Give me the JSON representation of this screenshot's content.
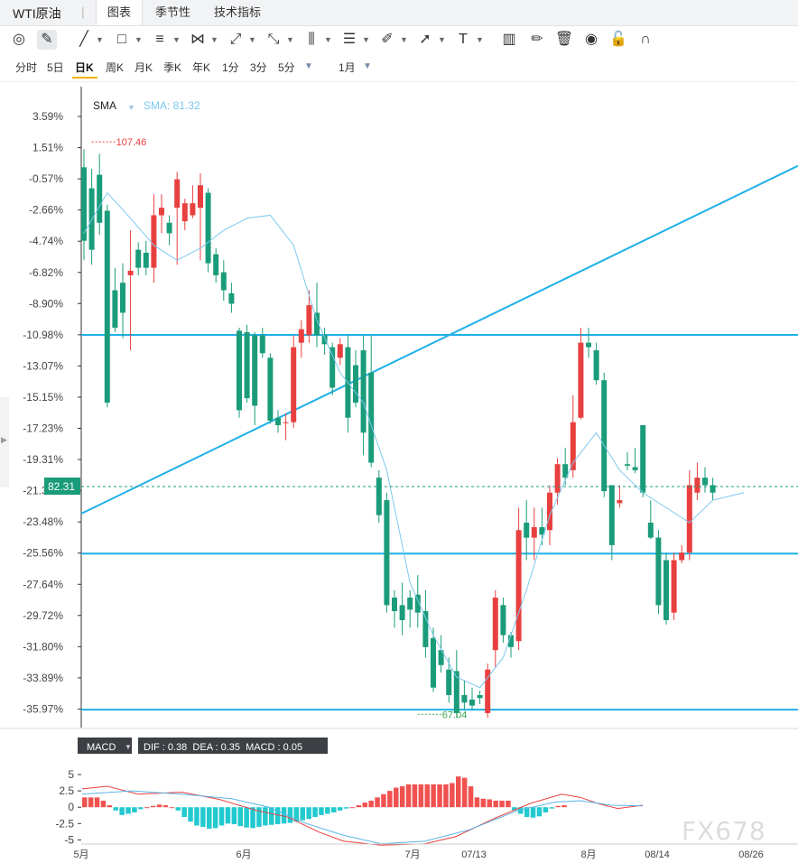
{
  "header": {
    "symbol": "WTI原油",
    "separator": "|",
    "tabs": [
      "图表",
      "季节性",
      "技术指标"
    ],
    "active_tab": 0
  },
  "toolbar": {
    "tools": [
      "circle-target-icon",
      "pencil-icon",
      "line-icon",
      "rectangle-icon",
      "parallel-lines-icon",
      "cross-pattern-icon",
      "ray-icon",
      "fibonacci-icon",
      "bars-icon",
      "horizontal-lines-icon",
      "brush-icon",
      "arrow-icon",
      "text-icon",
      "candles-icon",
      "edit-icon",
      "trash-icon",
      "eye-icon",
      "lock-icon",
      "magnet-icon"
    ],
    "text_tool_label": "T"
  },
  "periods": {
    "items": [
      "分时",
      "5日",
      "日K",
      "周K",
      "月K",
      "季K",
      "年K",
      "1分",
      "3分",
      "5分"
    ],
    "active": "日K",
    "more_label": "1月"
  },
  "indicator": {
    "sma_label": "SMA",
    "sma_value_label": "SMA: 81.32",
    "macd_label": "MACD",
    "macd_values": "DIF : 0.38  DEA : 0.35  MACD : 0.05",
    "current_price_label": "82.31",
    "high_label": "107.46",
    "low_label": "67.04"
  },
  "watermark": "FX678",
  "colors": {
    "up": "#e8403f",
    "down": "#1a9c7a",
    "sma": "#7ec8f0",
    "hline": "#1fb0e8",
    "dif": "#e8403f",
    "dea": "#5ab4e6",
    "hist_up": "#f0524f",
    "hist_down": "#22c9cf"
  },
  "chart_data": {
    "type": "candlestick",
    "y_axis": {
      "format": "percent",
      "ticks": [
        "3.59%",
        "1.51%",
        "-0.57%",
        "-2.66%",
        "-4.74%",
        "-6.82%",
        "-8.90%",
        "-10.98%",
        "-13.07%",
        "-15.15%",
        "-17.23%",
        "-19.31%",
        "-21.39%",
        "-23.48%",
        "-25.56%",
        "-27.64%",
        "-29.72%",
        "-31.80%",
        "-33.89%",
        "-35.97%"
      ],
      "range": [
        5.0,
        -37.0
      ]
    },
    "x_axis": {
      "ticks": [
        "5月",
        "6月",
        "7月",
        "07/13",
        "8月",
        "08/14",
        "08/26"
      ]
    },
    "high_marker": {
      "value": 107.46,
      "pct": 1.9
    },
    "low_marker": {
      "value": 67.04,
      "pct": -36.1
    },
    "current": {
      "value": 82.31,
      "pct": -21.4
    },
    "horizontal_lines_pct": [
      -10.98,
      -25.56,
      -35.97
    ],
    "trend_line_pct": [
      [
        0,
        -22.9
      ],
      [
        85,
        0.3
      ]
    ],
    "candles_pct": [
      [
        0.2,
        -4.7,
        -6.0,
        1.4
      ],
      [
        -1.2,
        -5.3,
        -6.3,
        0.1
      ],
      [
        -0.3,
        -3.5,
        -4.3,
        1.1
      ],
      [
        -2.7,
        -15.5,
        -15.8,
        -2.3
      ],
      [
        -8.0,
        -10.5,
        -10.8,
        -6.5
      ],
      [
        -7.5,
        -9.5,
        -11.2,
        -6.2
      ],
      [
        -7.0,
        -6.7,
        -12.0,
        -4.0
      ],
      [
        -5.3,
        -6.5,
        -7.0,
        -4.8
      ],
      [
        -5.5,
        -6.5,
        -7.0,
        -4.7
      ],
      [
        -6.5,
        -3.0,
        -7.5,
        -1.6
      ],
      [
        -3.0,
        -2.5,
        -4.2,
        -1.6
      ],
      [
        -3.5,
        -4.2,
        -5.0,
        -3.0
      ],
      [
        -2.5,
        -0.6,
        -6.3,
        -0.1
      ],
      [
        -3.4,
        -2.2,
        -4.0,
        -1.9
      ],
      [
        -3.0,
        -2.2,
        -3.2,
        -1.0
      ],
      [
        -2.5,
        -1.0,
        -6.0,
        -0.2
      ],
      [
        -1.5,
        -6.2,
        -6.8,
        -1.2
      ],
      [
        -5.6,
        -7.0,
        -7.5,
        -5.2
      ],
      [
        -6.8,
        -8.0,
        -8.7,
        -6.0
      ],
      [
        -8.2,
        -8.9,
        -9.5,
        -7.5
      ],
      [
        -10.7,
        -16.0,
        -16.5,
        -10.5
      ],
      [
        -10.8,
        -15.2,
        -15.5,
        -10.3
      ],
      [
        -11.0,
        -15.7,
        -17.0,
        -10.8
      ],
      [
        -11.0,
        -12.2,
        -12.5,
        -10.5
      ],
      [
        -12.5,
        -16.7,
        -16.9,
        -12.2
      ],
      [
        -16.5,
        -17.0,
        -17.5,
        -16.0
      ],
      [
        -16.8,
        -16.8,
        -18.0,
        -16.2
      ],
      [
        -16.8,
        -11.8,
        -17.2,
        -11.0
      ],
      [
        -11.5,
        -10.6,
        -12.5,
        -10.0
      ],
      [
        -11.0,
        -9.0,
        -11.5,
        -8.0
      ],
      [
        -9.5,
        -11.0,
        -11.8,
        -7.5
      ],
      [
        -11.0,
        -11.6,
        -12.3,
        -10.5
      ],
      [
        -11.8,
        -14.5,
        -15.0,
        -11.5
      ],
      [
        -12.5,
        -11.6,
        -13.0,
        -11.2
      ],
      [
        -11.8,
        -16.5,
        -17.5,
        -11.0
      ],
      [
        -13.0,
        -15.5,
        -15.8,
        -12.0
      ],
      [
        -12.0,
        -17.5,
        -19.0,
        -11.0
      ],
      [
        -13.5,
        -19.5,
        -19.8,
        -11.0
      ],
      [
        -20.5,
        -23.0,
        -23.5,
        -20.0
      ],
      [
        -22.0,
        -29.0,
        -29.5,
        -21.5
      ],
      [
        -28.5,
        -29.4,
        -30.5,
        -28.0
      ],
      [
        -29.0,
        -30.0,
        -31.0,
        -27.5
      ],
      [
        -28.5,
        -29.3,
        -30.5,
        -28.0
      ],
      [
        -28.3,
        -29.5,
        -30.5,
        -27.0
      ],
      [
        -29.4,
        -31.8,
        -32.5,
        -28.0
      ],
      [
        -31.2,
        -34.5,
        -34.8,
        -30.5
      ],
      [
        -32.0,
        -33.0,
        -33.5,
        -31.0
      ],
      [
        -33.3,
        -35.0,
        -35.5,
        -32.5
      ],
      [
        -33.4,
        -36.2,
        -36.5,
        -32.0
      ],
      [
        -35.0,
        -35.5,
        -36.0,
        -34.0
      ],
      [
        -35.3,
        -35.7,
        -36.0,
        -34.5
      ],
      [
        -35.0,
        -35.2,
        -35.6,
        -34.7
      ],
      [
        -36.2,
        -33.3,
        -36.5,
        -32.9
      ],
      [
        -32.0,
        -28.5,
        -33.2,
        -28.0
      ],
      [
        -29.0,
        -31.0,
        -31.5,
        -28.5
      ],
      [
        -31.0,
        -31.8,
        -32.5,
        -30.8
      ],
      [
        -31.4,
        -24.0,
        -32.0,
        -22.5
      ],
      [
        -23.5,
        -24.5,
        -26.0,
        -22.0
      ],
      [
        -24.5,
        -23.8,
        -26.0,
        -22.5
      ],
      [
        -23.8,
        -24.3,
        -25.0,
        -22.5
      ],
      [
        -24.0,
        -21.5,
        -25.0,
        -21.0
      ],
      [
        -21.5,
        -19.6,
        -22.3,
        -19.2
      ],
      [
        -19.6,
        -20.5,
        -21.0,
        -18.5
      ],
      [
        -20.0,
        -16.8,
        -20.5,
        -15.0
      ],
      [
        -16.5,
        -11.5,
        -16.6,
        -10.5
      ],
      [
        -11.5,
        -11.8,
        -12.5,
        -10.5
      ],
      [
        -12.0,
        -14.0,
        -14.3,
        -11.5
      ],
      [
        -14.0,
        -21.4,
        -21.8,
        -13.5
      ],
      [
        -21.0,
        -25.0,
        -26.0,
        -21.0
      ],
      [
        -22.2,
        -22.0,
        -22.5,
        -21.0
      ],
      [
        -19.6,
        -19.7,
        -20.0,
        -18.8
      ],
      [
        -19.8,
        -20.0,
        -20.2,
        -18.5
      ],
      [
        -17.0,
        -21.5,
        -21.8,
        -17.0
      ],
      [
        -23.5,
        -24.5,
        -24.6,
        -22.0
      ],
      [
        -24.5,
        -29.0,
        -29.6,
        -24.0
      ],
      [
        -26.0,
        -30.0,
        -30.3,
        -25.5
      ],
      [
        -29.5,
        -26.0,
        -30.0,
        -25.5
      ],
      [
        -26.0,
        -25.5,
        -26.2,
        -25.0
      ],
      [
        -25.5,
        -21.0,
        -26.0,
        -20.0
      ],
      [
        -21.5,
        -20.5,
        -22.0,
        -19.5
      ],
      [
        -20.5,
        -21.0,
        -21.5,
        -19.8
      ],
      [
        -21.0,
        -21.5,
        -22.0,
        -20.5
      ]
    ],
    "sma_pct": [
      [
        0,
        -4.2
      ],
      [
        3,
        -1.5
      ],
      [
        6,
        -3.2
      ],
      [
        9,
        -5.0
      ],
      [
        12,
        -6.0
      ],
      [
        15,
        -5.2
      ],
      [
        18,
        -4.0
      ],
      [
        21,
        -3.2
      ],
      [
        24,
        -3.0
      ],
      [
        27,
        -5.0
      ],
      [
        30,
        -10.0
      ],
      [
        33,
        -13.5
      ],
      [
        36,
        -15.5
      ],
      [
        39,
        -20.0
      ],
      [
        42,
        -27.5
      ],
      [
        45,
        -31.0
      ],
      [
        48,
        -33.8
      ],
      [
        51,
        -34.5
      ],
      [
        54,
        -32.5
      ],
      [
        57,
        -28.0
      ],
      [
        60,
        -23.0
      ],
      [
        63,
        -19.5
      ],
      [
        66,
        -17.5
      ],
      [
        69,
        -20.0
      ],
      [
        72,
        -21.5
      ],
      [
        75,
        -22.5
      ],
      [
        78,
        -23.5
      ],
      [
        81,
        -22.0
      ],
      [
        85,
        -21.5
      ]
    ],
    "macd": {
      "y_ticks": [
        "5",
        "2.5",
        "0",
        "-2.5",
        "-5"
      ],
      "y_range": [
        7,
        -7
      ],
      "histogram": [
        1.5,
        1.5,
        1.5,
        1.0,
        0.3,
        -0.5,
        -1.2,
        -1.0,
        -0.8,
        -0.3,
        0.0,
        0.2,
        0.4,
        0.3,
        0.0,
        -0.5,
        -1.5,
        -2.2,
        -2.8,
        -3.0,
        -3.3,
        -3.2,
        -2.8,
        -2.5,
        -2.6,
        -2.9,
        -3.1,
        -3.2,
        -3.0,
        -2.8,
        -2.7,
        -2.6,
        -2.5,
        -2.4,
        -2.2,
        -2.0,
        -1.8,
        -1.5,
        -1.2,
        -1.0,
        -0.8,
        -0.5,
        -0.2,
        0.0,
        0.3,
        0.7,
        1.0,
        1.5,
        2.0,
        2.5,
        3.0,
        3.2,
        3.5,
        3.5,
        3.5,
        3.5,
        3.5,
        3.5,
        3.5,
        3.7,
        4.7,
        4.5,
        3.2,
        1.5,
        1.3,
        1.2,
        1.0,
        1.0,
        1.0,
        -0.5,
        -1.0,
        -1.5,
        -1.6,
        -1.4,
        -0.8,
        -0.2,
        0.2,
        0.3
      ],
      "dif": [
        [
          0,
          2.8
        ],
        [
          4,
          3.2
        ],
        [
          9,
          2.0
        ],
        [
          16,
          2.3
        ],
        [
          22,
          1.2
        ],
        [
          28,
          -0.5
        ],
        [
          33,
          -1.5
        ],
        [
          38,
          -3.8
        ],
        [
          42,
          -5.2
        ],
        [
          48,
          -5.8
        ],
        [
          55,
          -5.6
        ],
        [
          60,
          -4.5
        ],
        [
          66,
          -1.8
        ],
        [
          72,
          0.6
        ],
        [
          77,
          2.0
        ],
        [
          80,
          1.5
        ],
        [
          83,
          0.5
        ],
        [
          86,
          -0.2
        ],
        [
          90,
          0.3
        ]
      ],
      "dea": [
        [
          0,
          2.0
        ],
        [
          8,
          2.5
        ],
        [
          16,
          2.0
        ],
        [
          24,
          1.3
        ],
        [
          30,
          0.0
        ],
        [
          36,
          -2.5
        ],
        [
          42,
          -4.3
        ],
        [
          48,
          -5.6
        ],
        [
          55,
          -5.2
        ],
        [
          62,
          -3.5
        ],
        [
          70,
          -0.5
        ],
        [
          76,
          0.8
        ],
        [
          80,
          1.0
        ],
        [
          85,
          0.3
        ],
        [
          90,
          0.2
        ]
      ]
    }
  }
}
